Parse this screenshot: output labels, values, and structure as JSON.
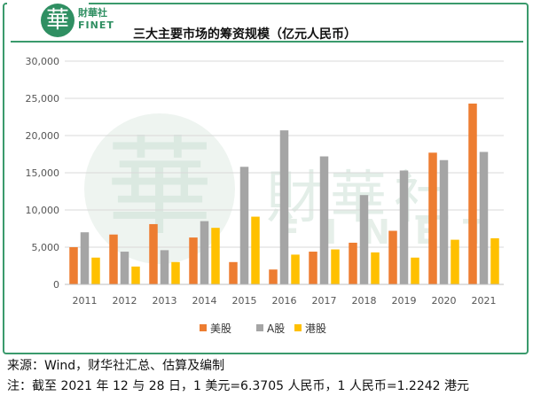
{
  "logo": {
    "seal": "華",
    "cn": "財華社",
    "en": "FINET"
  },
  "watermark": {
    "cn": "財華社",
    "en": "FINET",
    "seal": "華"
  },
  "chart_data": {
    "type": "bar",
    "title": "三大主要市场的筹资规模（亿元人民币）",
    "categories": [
      "2011",
      "2012",
      "2013",
      "2014",
      "2015",
      "2016",
      "2017",
      "2018",
      "2019",
      "2020",
      "2021"
    ],
    "series": [
      {
        "name": "美股",
        "color": "#ed7d31",
        "values": [
          5000,
          6700,
          8100,
          6300,
          3000,
          2000,
          4400,
          5600,
          7200,
          17700,
          24300
        ]
      },
      {
        "name": "A股",
        "color": "#a5a5a5",
        "values": [
          7000,
          4400,
          4600,
          8500,
          15800,
          20700,
          17200,
          12000,
          15300,
          16700,
          17800
        ]
      },
      {
        "name": "港股",
        "color": "#ffc000",
        "values": [
          3600,
          2400,
          3000,
          7600,
          9100,
          4000,
          4700,
          4300,
          3600,
          6000,
          6200
        ]
      }
    ],
    "ylim": [
      0,
      30000
    ],
    "yticks": [
      "0",
      "5,000",
      "10,000",
      "15,000",
      "20,000",
      "25,000",
      "30,000"
    ],
    "grid": true,
    "legend_position": "bottom"
  },
  "notes": {
    "source": "来源：Wind，财华社汇总、估算及编制",
    "note": "注：截至 2021 年 12 与 28 日，1 美元=6.3705 人民币，1 人民币=1.2242 港元"
  }
}
